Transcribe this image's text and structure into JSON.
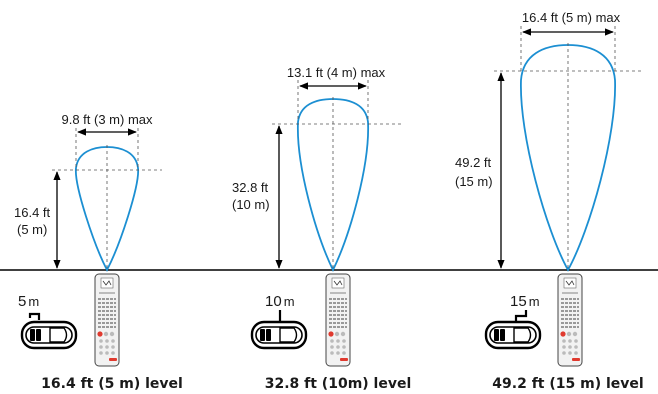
{
  "panels": [
    {
      "width_label": "9.8 ft (3 m) max",
      "height_label_ft": "16.4 ft",
      "height_label_m": "(5 m)",
      "distance_value": "5",
      "distance_unit": "m",
      "level_label": "16.4 ft (5 m) level",
      "level_setting": "low"
    },
    {
      "width_label": "13.1 ft (4 m) max",
      "height_label_ft": "32.8 ft",
      "height_label_m": "(10 m)",
      "distance_value": "10",
      "distance_unit": "m",
      "level_label": "32.8 ft (10m) level",
      "level_setting": "mid"
    },
    {
      "width_label": "16.4 ft (5 m) max",
      "height_label_ft": "49.2 ft",
      "height_label_m": "(15 m)",
      "distance_value": "15",
      "distance_unit": "m",
      "level_label": "49.2 ft (15 m) level",
      "level_setting": "high"
    }
  ],
  "colors": {
    "beam": "#1c8fd2",
    "remote_red_button": "#e03a2f",
    "remote_body": "#f2f2f2"
  },
  "icons": [
    "remote-control-icon",
    "car-icon",
    "height-arrow-icon",
    "width-arrow-icon"
  ]
}
